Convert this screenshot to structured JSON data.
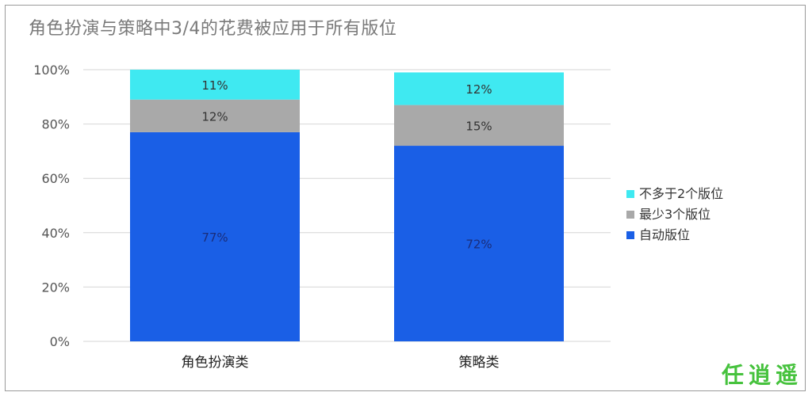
{
  "title": "角色扮演与策略中3/4的花费被应用于所有版位",
  "watermark": "任逍遥",
  "chart_data": {
    "type": "bar",
    "stacked": true,
    "categories": [
      "角色扮演类",
      "策略类"
    ],
    "series": [
      {
        "name": "自动版位",
        "values": [
          77,
          72
        ],
        "labels": [
          "77%",
          "72%"
        ],
        "color": "#1a5fe6"
      },
      {
        "name": "最少3个版位",
        "values": [
          12,
          15
        ],
        "labels": [
          "12%",
          "15%"
        ],
        "color": "#a9a9a9"
      },
      {
        "name": "不多于2个版位",
        "values": [
          11,
          12
        ],
        "labels": [
          "11%",
          "12%"
        ],
        "color": "#3fe9f1"
      }
    ],
    "yticks": [
      "0%",
      "20%",
      "40%",
      "60%",
      "80%",
      "100%"
    ],
    "ylim": [
      0,
      100
    ],
    "legend": "right",
    "grid": true
  }
}
